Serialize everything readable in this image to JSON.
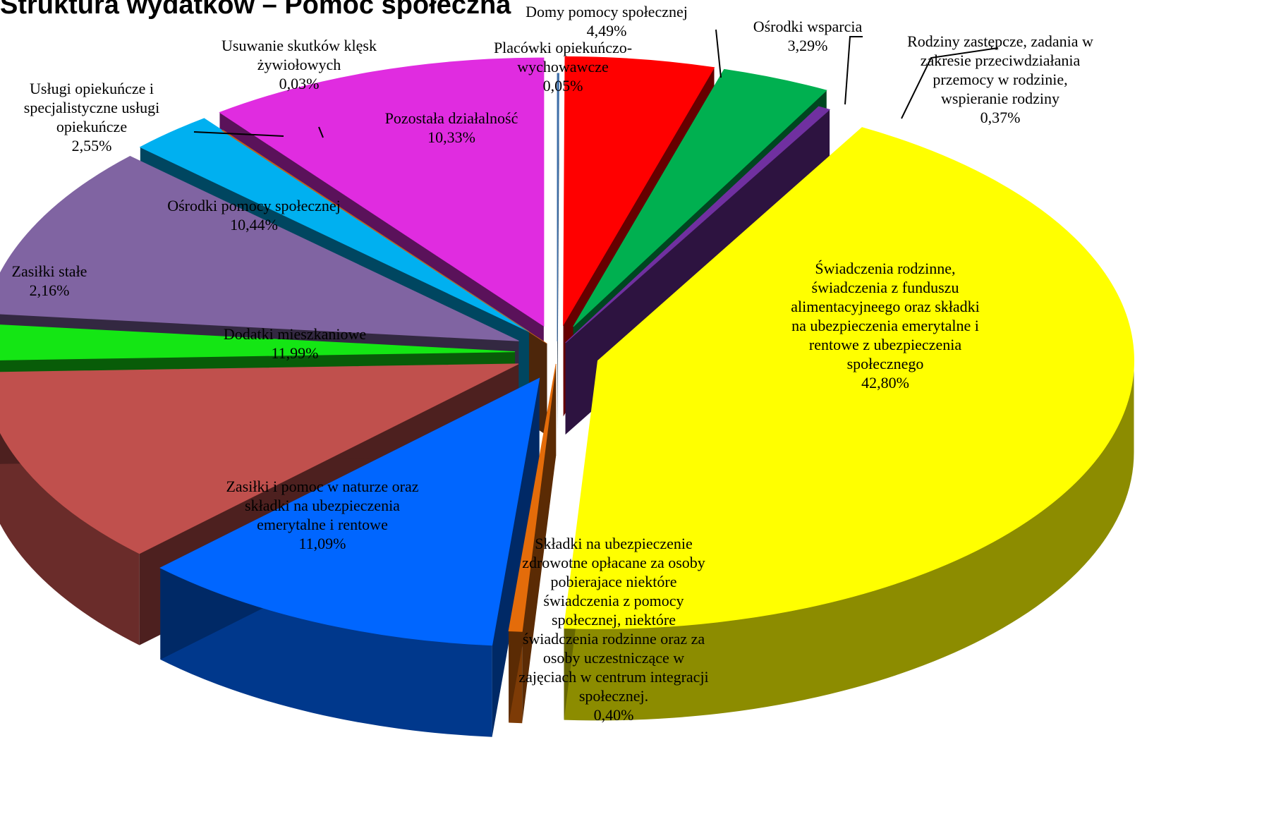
{
  "chart_data": {
    "type": "pie",
    "title": "Struktura wydatków – Pomoc społeczna",
    "legend": "none",
    "slices": [
      {
        "label": "Placówki opiekuńczo-wychowawcze",
        "value": 0.05,
        "value_label": "0,05%",
        "color": "#3f6fa8",
        "label_lines": [
          "Placówki opiekuńczo-",
          "wychowawcze",
          "0,05%"
        ]
      },
      {
        "label": "Domy pomocy społecznej",
        "value": 4.49,
        "value_label": "4,49%",
        "color": "#ff0000",
        "label_lines": [
          "Domy pomocy społecznej",
          "4,49%"
        ]
      },
      {
        "label": "Ośrodki wsparcia",
        "value": 3.29,
        "value_label": "3,29%",
        "color": "#00b050",
        "label_lines": [
          "Ośrodki wsparcia",
          "3,29%"
        ]
      },
      {
        "label": "Rodziny zastępcze, zadania w zakresie przeciwdziałania przemocy w rodzinie, wspieranie rodziny",
        "value": 0.37,
        "value_label": "0,37%",
        "color": "#7030a0",
        "label_lines": [
          "Rodziny zastępcze, zadania w",
          "zakresie przeciwdziałania",
          "przemocy w rodzinie,",
          "wspieranie rodziny",
          "0,37%"
        ]
      },
      {
        "label": "Świadczenia rodzinne, świadczenia z funduszu alimentacyjneego oraz składki na ubezpieczenia emerytalne i rentowe z ubezpieczenia społecznego",
        "value": 42.8,
        "value_label": "42,80%",
        "color": "#ffff00",
        "label_lines": [
          "Świadczenia rodzinne,",
          "świadczenia z funduszu",
          "alimentacyjneego oraz składki",
          "na ubezpieczenia emerytalne i",
          "rentowe z ubezpieczenia",
          "społecznego",
          "42,80%"
        ]
      },
      {
        "label": "Składki na ubezpieczenie zdrowotne opłacane za osoby pobierajace niektóre świadczenia z pomocy społecznej, niektóre świadczenia rodzinne oraz za osoby uczestniczące w zajęciach w centrum integracji społecznej.",
        "value": 0.4,
        "value_label": "0,40%",
        "color": "#e46c0a",
        "label_lines": [
          "Składki na ubezpieczenie",
          "zdrowotne opłacane za osoby",
          "pobierajace niektóre",
          "świadczenia z pomocy",
          "społecznej, niektóre",
          "świadczenia rodzinne oraz za",
          "osoby uczestniczące w",
          "zajęciach w centrum integracji",
          "społecznej.",
          "0,40%"
        ]
      },
      {
        "label": "Zasiłki i pomoc w naturze oraz składki na ubezpieczenia emerytalne i rentowe",
        "value": 11.09,
        "value_label": "11,09%",
        "color": "#0066ff",
        "label_lines": [
          "Zasiłki i pomoc w naturze oraz",
          "składki na ubezpieczenia",
          "emerytalne i rentowe",
          "11,09%"
        ]
      },
      {
        "label": "Dodatki mieszkaniowe",
        "value": 11.99,
        "value_label": "11,99%",
        "color": "#c0504d",
        "label_lines": [
          "Dodatki mieszkaniowe",
          "11,99%"
        ]
      },
      {
        "label": "Zasiłki stałe",
        "value": 2.16,
        "value_label": "2,16%",
        "color": "#14e614",
        "label_lines": [
          "Zasiłki stałe",
          "2,16%"
        ]
      },
      {
        "label": "Ośrodki pomocy społecznej",
        "value": 10.44,
        "value_label": "10,44%",
        "color": "#8064a2",
        "label_lines": [
          "Ośrodki pomocy społecznej",
          "10,44%"
        ]
      },
      {
        "label": "Usługi opiekuńcze i specjalistyczne usługi opiekuńcze",
        "value": 2.55,
        "value_label": "2,55%",
        "color": "#00b0f0",
        "label_lines": [
          "Usługi opiekuńcze i",
          "specjalistyczne usługi",
          "opiekuńcze",
          "2,55%"
        ]
      },
      {
        "label": "Usuwanie skutków klęsk żywiołowych",
        "value": 0.03,
        "value_label": "0,03%",
        "color": "#c0601a",
        "label_lines": [
          "Usuwanie skutków klęsk",
          "żywiołowych",
          "0,03%"
        ]
      },
      {
        "label": "Pozostała działalność",
        "value": 10.33,
        "value_label": "10,33%",
        "color": "#e02ce0",
        "label_lines": [
          "Pozostała działalność",
          "10,33%"
        ]
      }
    ]
  }
}
